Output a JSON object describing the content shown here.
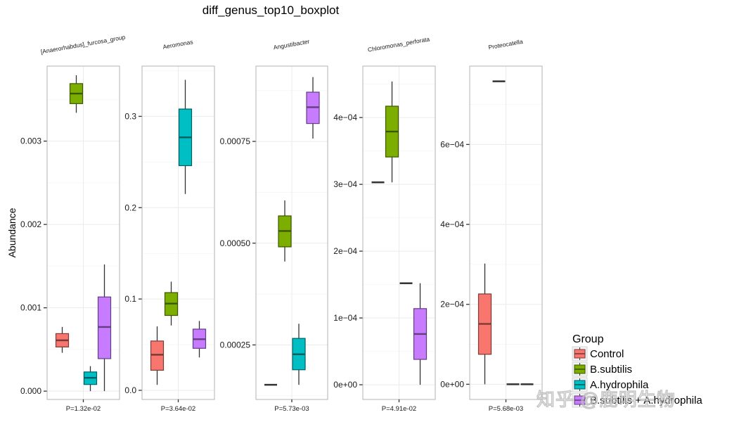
{
  "chart_data": {
    "type": "boxplot",
    "title": "diff_genus_top10_boxplot",
    "ylabel": "Abundance",
    "xlabel": "",
    "grid": true,
    "legend": {
      "title": "Group",
      "placement": "bottom-right",
      "entries": [
        {
          "name": "Control",
          "color": "#F8766D"
        },
        {
          "name": "B.subtilis",
          "color": "#7CAE00"
        },
        {
          "name": "A.hydrophila",
          "color": "#00BFC4"
        },
        {
          "name": "B.subtilis + A.hydrophila",
          "color": "#C77CFF"
        }
      ]
    },
    "groups": [
      "Control",
      "B.subtilis",
      "A.hydrophila",
      "B.subtilis + A.hydrophila"
    ],
    "panels": [
      {
        "name": "[Anaerorhabdus]_furcosa_group",
        "p_label": "P=1.32e-02",
        "ylim": [
          -0.0001,
          0.0039
        ],
        "ticks": [
          0.0,
          0.001,
          0.002,
          0.003
        ],
        "tick_labels": [
          "0.000",
          "0.001",
          "0.002",
          "0.003"
        ],
        "boxes": [
          {
            "group": "Control",
            "min": 0.00046,
            "q1": 0.00053,
            "median": 0.00061,
            "q3": 0.00069,
            "max": 0.00077
          },
          {
            "group": "B.subtilis",
            "min": 0.00334,
            "q1": 0.00345,
            "median": 0.00357,
            "q3": 0.00369,
            "max": 0.00379
          },
          {
            "group": "A.hydrophila",
            "min": 0.0,
            "q1": 8e-05,
            "median": 0.00016,
            "q3": 0.00023,
            "max": 0.0003
          },
          {
            "group": "B.subtilis + A.hydrophila",
            "min": 0.0,
            "q1": 0.00039,
            "median": 0.00077,
            "q3": 0.00113,
            "max": 0.00152
          }
        ]
      },
      {
        "name": "Aeromonas",
        "p_label": "P=3.64e-02",
        "ylim": [
          -0.01,
          0.355
        ],
        "ticks": [
          0.0,
          0.1,
          0.2,
          0.3
        ],
        "tick_labels": [
          "0.0",
          "0.1",
          "0.2",
          "0.3"
        ],
        "boxes": [
          {
            "group": "Control",
            "min": 0.006,
            "q1": 0.022,
            "median": 0.039,
            "q3": 0.054,
            "max": 0.07
          },
          {
            "group": "B.subtilis",
            "min": 0.071,
            "q1": 0.082,
            "median": 0.095,
            "q3": 0.107,
            "max": 0.119
          },
          {
            "group": "A.hydrophila",
            "min": 0.215,
            "q1": 0.246,
            "median": 0.277,
            "q3": 0.308,
            "max": 0.34
          },
          {
            "group": "B.subtilis + A.hydrophila",
            "min": 0.036,
            "q1": 0.046,
            "median": 0.056,
            "q3": 0.067,
            "max": 0.076
          }
        ]
      },
      {
        "name": "Angustibacter",
        "p_label": "P=5.73e-03",
        "ylim": [
          0.000116,
          0.000935
        ],
        "ticks": [
          0.00025,
          0.0005,
          0.00075
        ],
        "tick_labels": [
          "0.00025",
          "0.00050",
          "0.00075"
        ],
        "boxes": [
          {
            "group": "Control",
            "min": 0.000152,
            "q1": 0.000152,
            "median": 0.000152,
            "q3": 0.000152,
            "max": 0.000152
          },
          {
            "group": "B.subtilis",
            "min": 0.000455,
            "q1": 0.000491,
            "median": 0.00053,
            "q3": 0.000567,
            "max": 0.000605
          },
          {
            "group": "A.hydrophila",
            "min": 0.000152,
            "q1": 0.000189,
            "median": 0.000227,
            "q3": 0.000266,
            "max": 0.000302
          },
          {
            "group": "B.subtilis + A.hydrophila",
            "min": 0.000757,
            "q1": 0.000794,
            "median": 0.000834,
            "q3": 0.000871,
            "max": 0.000908
          }
        ]
      },
      {
        "name": "Chloromonas_perforata",
        "p_label": "P=4.91e-02",
        "ylim": [
          -2.2e-05,
          0.000477
        ],
        "ticks": [
          0.0,
          0.0001,
          0.0002,
          0.0003,
          0.0004
        ],
        "tick_labels": [
          "0e+00",
          "1e−04",
          "2e−04",
          "3e−04",
          "4e−04"
        ],
        "boxes": [
          {
            "group": "Control",
            "min": 0.000303,
            "q1": 0.000303,
            "median": 0.000303,
            "q3": 0.000303,
            "max": 0.000303
          },
          {
            "group": "B.subtilis",
            "min": 0.000303,
            "q1": 0.000341,
            "median": 0.000379,
            "q3": 0.000417,
            "max": 0.000454
          },
          {
            "group": "A.hydrophila",
            "min": 0.000152,
            "q1": 0.000152,
            "median": 0.000152,
            "q3": 0.000152,
            "max": 0.000152
          },
          {
            "group": "B.subtilis + A.hydrophila",
            "min": 0.0,
            "q1": 3.8e-05,
            "median": 7.6e-05,
            "q3": 0.000114,
            "max": 0.000152
          }
        ]
      },
      {
        "name": "Proteocatella",
        "p_label": "P=5.68e-03",
        "ylim": [
          -3.8e-05,
          0.000796
        ],
        "ticks": [
          0.0,
          0.0002,
          0.0004,
          0.0006
        ],
        "tick_labels": [
          "0e+00",
          "2e−04",
          "4e−04",
          "6e−04"
        ],
        "boxes": [
          {
            "group": "Control",
            "min": 0.0,
            "q1": 7.5e-05,
            "median": 0.000151,
            "q3": 0.000226,
            "max": 0.000302
          },
          {
            "group": "B.subtilis",
            "min": 0.000758,
            "q1": 0.000758,
            "median": 0.000758,
            "q3": 0.000758,
            "max": 0.000758
          },
          {
            "group": "A.hydrophila",
            "min": 0.0,
            "q1": 0.0,
            "median": 0.0,
            "q3": 0.0,
            "max": 0.0
          },
          {
            "group": "B.subtilis + A.hydrophila",
            "min": 0.0,
            "q1": 0.0,
            "median": 0.0,
            "q3": 0.0,
            "max": 0.0
          }
        ]
      }
    ]
  },
  "watermark": "知乎 @鹿明生物"
}
